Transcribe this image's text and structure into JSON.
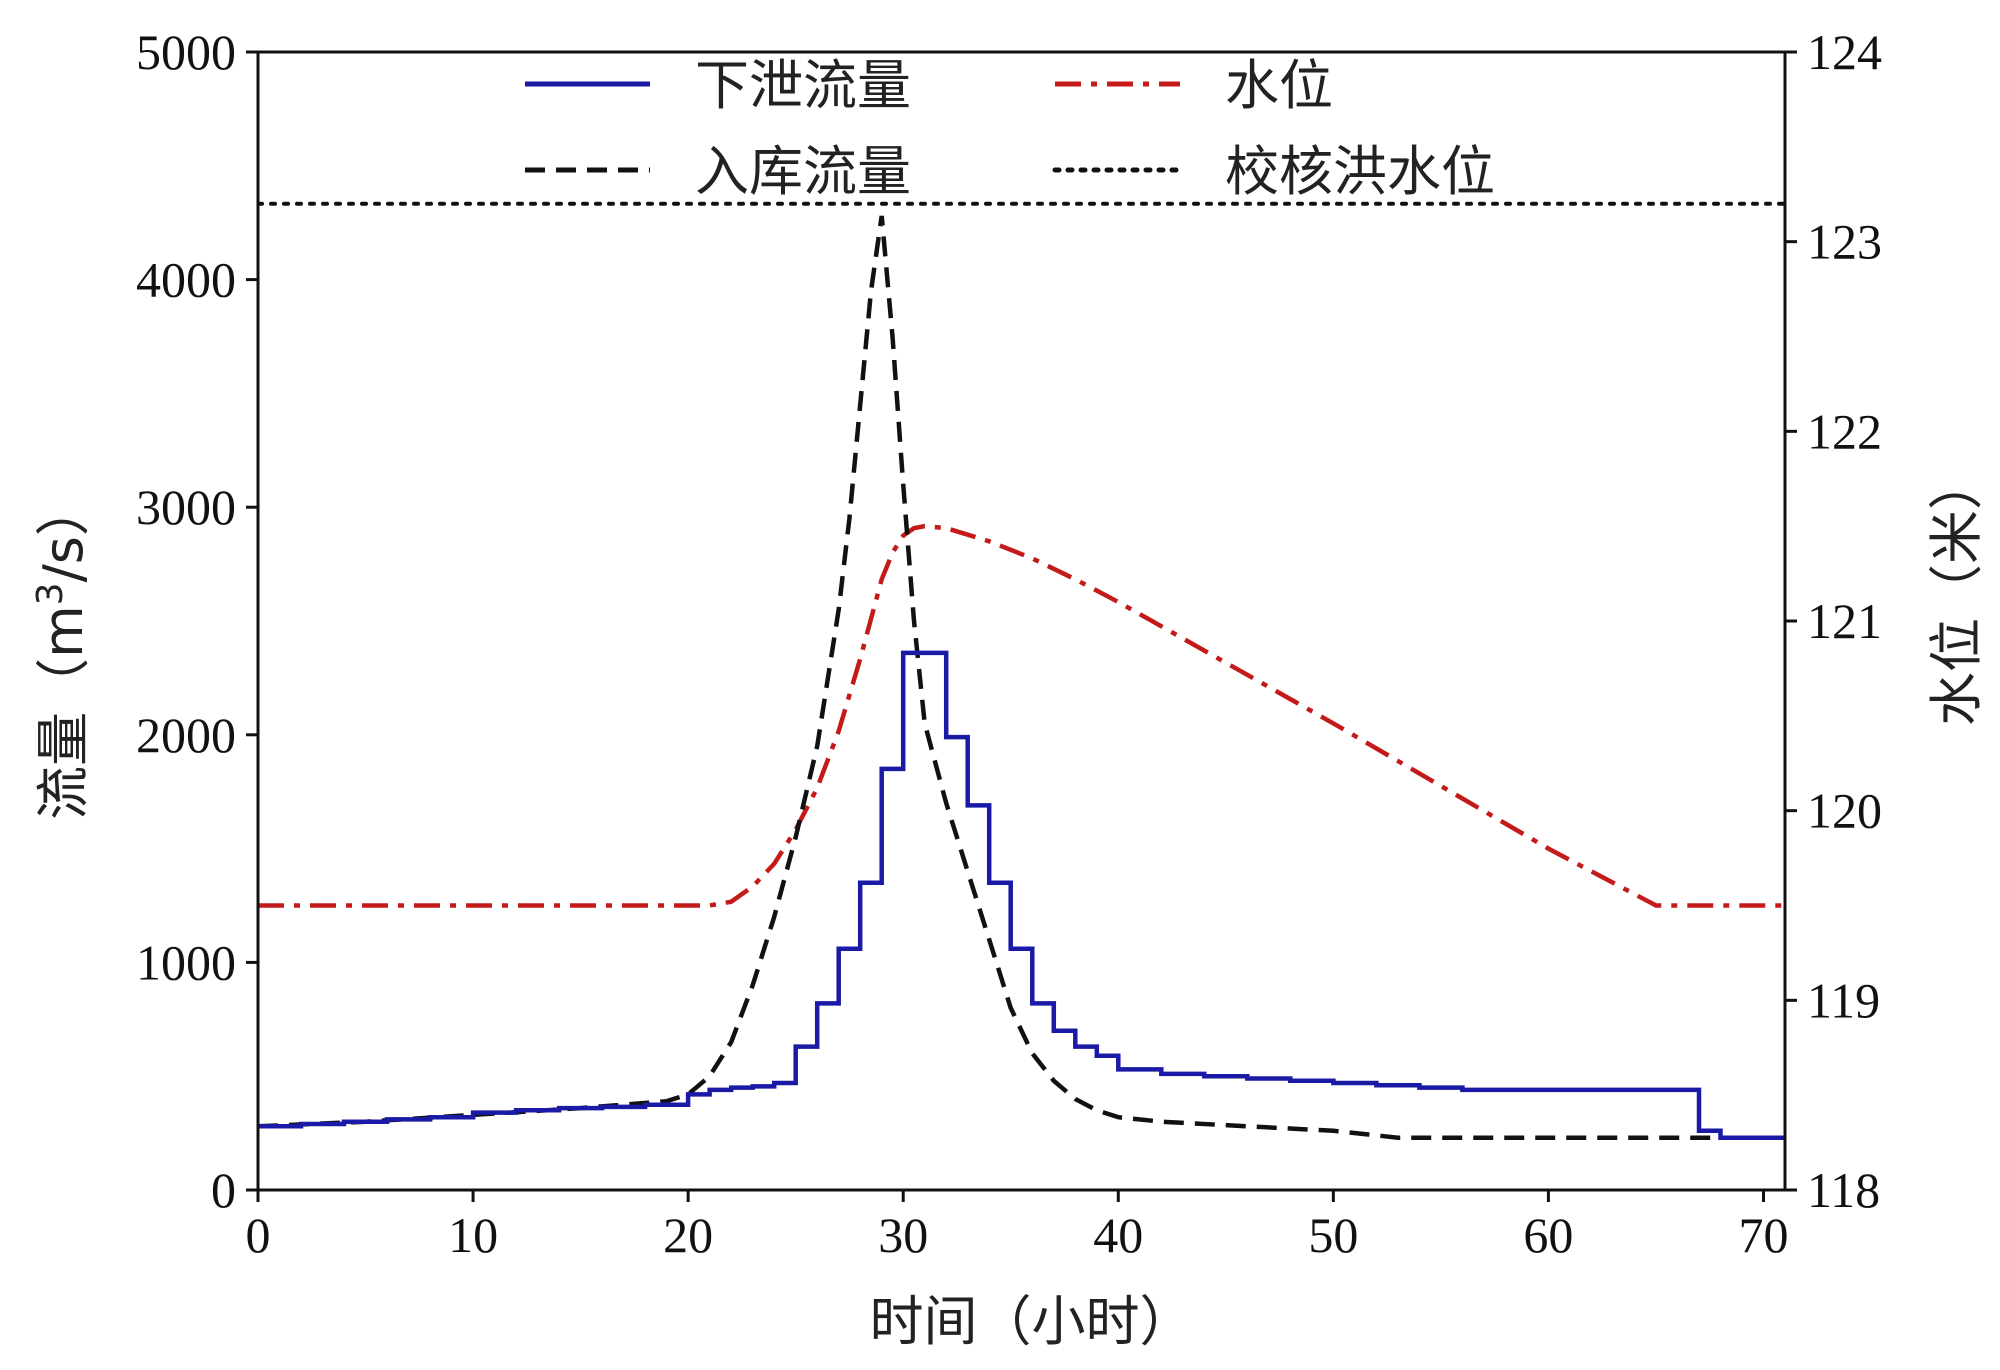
{
  "chart_data": {
    "type": "line",
    "xlabel": "时间（小时）",
    "ylabel_left": {
      "prefix": "流量（m",
      "sup": "3",
      "suffix": "/s）"
    },
    "ylabel_right": "水位（米）",
    "xlim": [
      0,
      71
    ],
    "ylim_left": [
      0,
      5000
    ],
    "ylim_right": [
      118,
      124
    ],
    "x_ticks": [
      0,
      10,
      20,
      30,
      40,
      50,
      60,
      70
    ],
    "y_left_ticks": [
      0,
      1000,
      2000,
      3000,
      4000,
      5000
    ],
    "y_right_ticks": [
      118,
      119,
      120,
      121,
      122,
      123,
      124
    ],
    "legend": [
      {
        "label": "下泄流量",
        "color": "#1a1aa6",
        "style": "solid"
      },
      {
        "label": "水位",
        "color": "#c41a1a",
        "style": "dashdot"
      },
      {
        "label": "入库流量",
        "color": "#111111",
        "style": "dashed"
      },
      {
        "label": "校核洪水位",
        "color": "#111111",
        "style": "dotted"
      }
    ],
    "series": [
      {
        "name": "下泄流量",
        "axis": "left",
        "step": true,
        "x": [
          0,
          2,
          4,
          6,
          8,
          10,
          12,
          14,
          16,
          18,
          20,
          21,
          22,
          23,
          24,
          25,
          26,
          27,
          28,
          29,
          30,
          31,
          32,
          33,
          34,
          35,
          36,
          37,
          38,
          39,
          40,
          42,
          44,
          46,
          48,
          50,
          52,
          54,
          56,
          58,
          60,
          62,
          64,
          66,
          67,
          68,
          71
        ],
        "values": [
          280,
          290,
          300,
          310,
          320,
          340,
          350,
          360,
          365,
          375,
          420,
          440,
          450,
          455,
          470,
          630,
          820,
          1060,
          1350,
          1850,
          2360,
          2360,
          1990,
          1690,
          1350,
          1060,
          820,
          700,
          630,
          590,
          530,
          510,
          500,
          490,
          480,
          470,
          460,
          450,
          440,
          440,
          440,
          440,
          440,
          440,
          260,
          230,
          230
        ]
      },
      {
        "name": "入库流量",
        "axis": "left",
        "x": [
          0,
          5,
          10,
          15,
          19,
          20,
          21,
          22,
          23,
          24,
          25,
          26,
          27,
          27.5,
          28,
          28.5,
          29,
          29.5,
          30,
          30.5,
          31,
          32,
          33,
          34,
          35,
          36,
          37,
          38,
          39,
          40,
          42,
          46,
          50,
          53,
          60,
          66,
          71
        ],
        "values": [
          280,
          300,
          330,
          360,
          390,
          420,
          500,
          650,
          900,
          1200,
          1550,
          1950,
          2550,
          2950,
          3450,
          3950,
          4280,
          3750,
          3100,
          2500,
          2050,
          1700,
          1400,
          1100,
          800,
          600,
          480,
          400,
          350,
          320,
          300,
          280,
          260,
          230,
          230,
          230,
          230
        ]
      },
      {
        "name": "水位",
        "axis": "right",
        "x": [
          0,
          20,
          21,
          22,
          23,
          24,
          25,
          26,
          27,
          28,
          29,
          29.5,
          30,
          30.5,
          31,
          32,
          34,
          36,
          38,
          40,
          45,
          50,
          55,
          60,
          65,
          66,
          71
        ],
        "values": [
          119.5,
          119.5,
          119.5,
          119.52,
          119.6,
          119.72,
          119.9,
          120.12,
          120.42,
          120.8,
          121.22,
          121.36,
          121.45,
          121.49,
          121.5,
          121.49,
          121.42,
          121.33,
          121.22,
          121.1,
          120.78,
          120.46,
          120.13,
          119.8,
          119.5,
          119.5,
          119.5
        ]
      },
      {
        "name": "校核洪水位",
        "axis": "right",
        "x": [
          0,
          71
        ],
        "values": [
          123.2,
          123.2
        ]
      }
    ]
  }
}
